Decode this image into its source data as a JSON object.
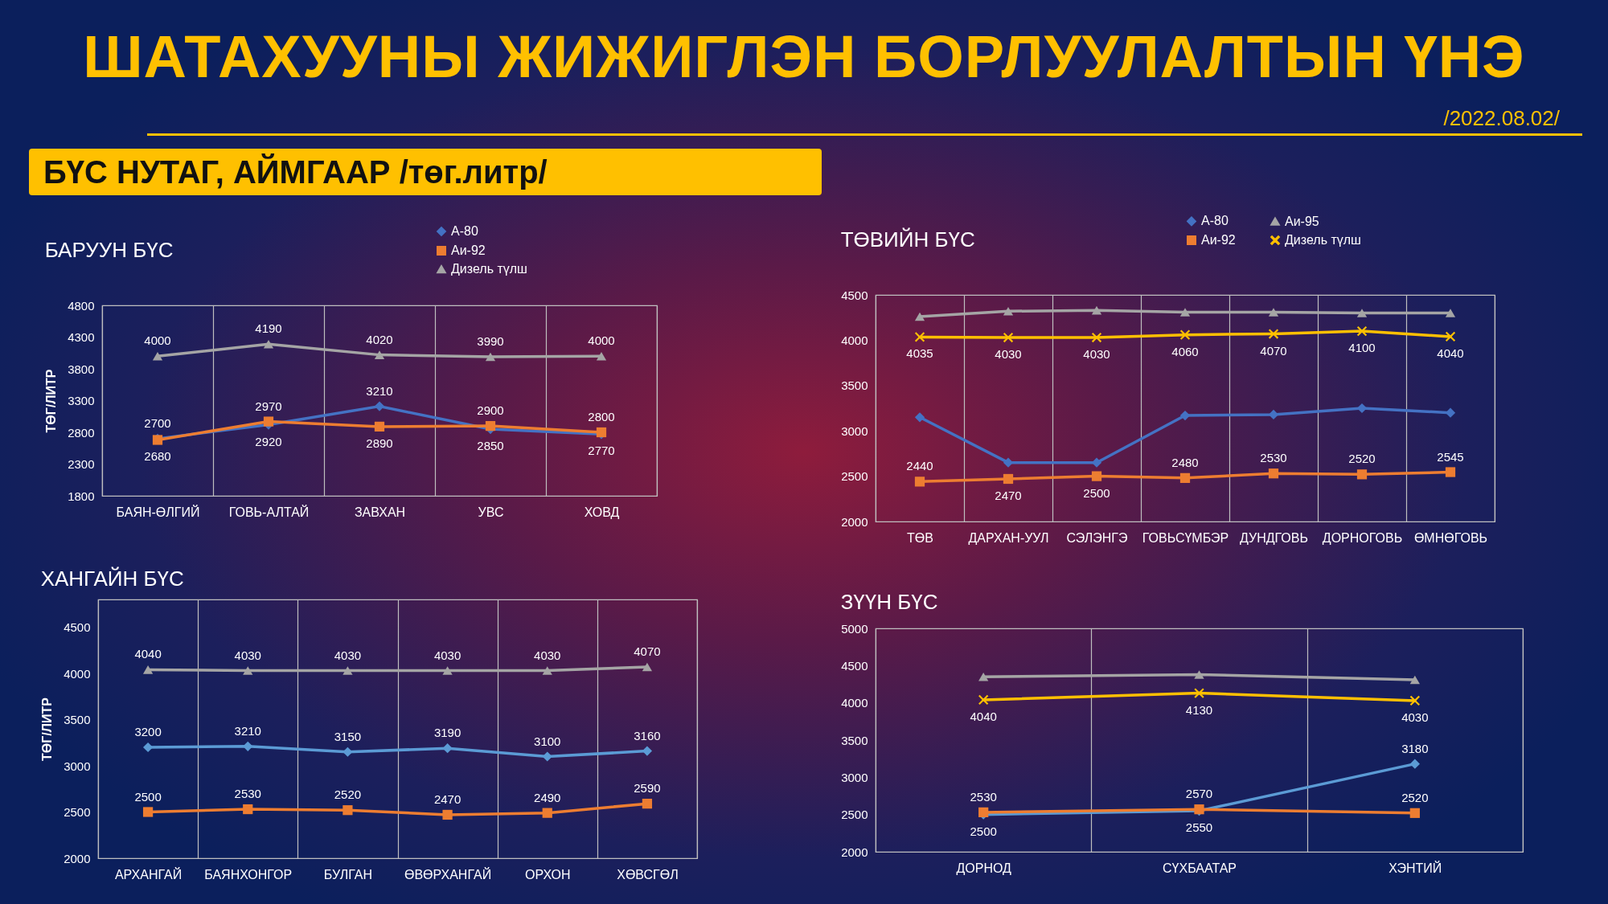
{
  "chart_data": [
    {
      "type": "other",
      "title": "ШАТАХУУНЫ ЖИЖИГЛЭН БОРЛУУЛАЛТЫН ҮНЭ",
      "subtitle": "/2022.08.02/",
      "annotations": [
        "БҮС НУТАГ, АЙМГААР /төг.литр/"
      ]
    },
    {
      "type": "line",
      "title": "БАРУУН БҮС",
      "ylabel": "ТӨГ/ЛИТР",
      "categories": [
        "БАЯН-ӨЛГИЙ",
        "ГОВЬ-АЛТАЙ",
        "ЗАВХАН",
        "УВС",
        "ХОВД"
      ],
      "ylim": [
        1800,
        4800
      ],
      "yticks": [
        1800,
        2300,
        2800,
        3300,
        3800,
        4300,
        4800
      ],
      "grid": "x",
      "legend": "top right",
      "line_style": "solid",
      "data_labels": true,
      "series": [
        {
          "name": "А-80",
          "color": "#4472c4",
          "marker": "diamond",
          "values": [
            2700,
            2920,
            3210,
            2850,
            2770
          ]
        },
        {
          "name": "Аи-92",
          "color": "#ed7d31",
          "marker": "square",
          "values": [
            2680,
            2970,
            2890,
            2900,
            2800
          ]
        },
        {
          "name": "Дизель түлш",
          "color": "#a5a5a5",
          "marker": "triangle",
          "values": [
            4000,
            4190,
            4020,
            3990,
            4000
          ]
        }
      ]
    },
    {
      "type": "line",
      "title": "ТӨВИЙН БҮС",
      "categories": [
        "ТӨВ",
        "ДАРХАН-УУЛ",
        "СЭЛЭНГЭ",
        "ГОВЬСҮМБЭР",
        "ДУНДГОВЬ",
        "ДОРНОГОВЬ",
        "ӨМНӨГОВЬ"
      ],
      "ylim": [
        2000,
        4500
      ],
      "yticks": [
        2000,
        2500,
        3000,
        3500,
        4000,
        4500
      ],
      "grid": "x",
      "legend": "top right",
      "line_style": "solid",
      "series": [
        {
          "name": "А-80",
          "color": "#4472c4",
          "marker": "diamond",
          "values": [
            3150,
            2650,
            2650,
            3170,
            3180,
            3250,
            3200
          ]
        },
        {
          "name": "Аи-92",
          "color": "#ed7d31",
          "marker": "square",
          "values": [
            2440,
            2470,
            2500,
            2480,
            2530,
            2520,
            2545
          ],
          "value_labels": [
            "2440",
            "2470",
            "2500",
            "2480",
            "2530",
            "2520",
            "2545"
          ]
        },
        {
          "name": "Аи-95",
          "color": "#a5a5a5",
          "marker": "triangle",
          "values": [
            4260,
            4320,
            4330,
            4310,
            4310,
            4300,
            4300
          ]
        },
        {
          "name": "Дизель түлш",
          "color": "#ffc000",
          "marker": "cross",
          "values": [
            4035,
            4030,
            4030,
            4060,
            4070,
            4100,
            4040
          ],
          "value_labels": [
            "4035",
            "4030",
            "4030",
            "4060",
            "4070",
            "4100",
            "4040"
          ]
        }
      ]
    },
    {
      "type": "line",
      "title": "ХАНГАЙН БҮС",
      "ylabel": "ТӨГ/ЛИТР",
      "categories": [
        "АРХАНГАЙ",
        "БАЯНХОНГОР",
        "БУЛГАН",
        "ӨВӨРХАНГАЙ",
        "ОРХОН",
        "ХӨВСГӨЛ"
      ],
      "ylim": [
        2000,
        4800
      ],
      "yticks": [
        2000,
        2500,
        3000,
        3500,
        4000,
        4500
      ],
      "grid": "x",
      "line_style": "solid",
      "data_labels": true,
      "series": [
        {
          "color": "#a5a5a5",
          "marker": "triangle",
          "values": [
            4040,
            4030,
            4030,
            4030,
            4030,
            4070
          ]
        },
        {
          "color": "#5b9bd5",
          "marker": "diamond",
          "values": [
            3200,
            3210,
            3150,
            3190,
            3100,
            3160
          ]
        },
        {
          "color": "#ed7d31",
          "marker": "square",
          "values": [
            2500,
            2530,
            2520,
            2470,
            2490,
            2590
          ]
        }
      ]
    },
    {
      "type": "line",
      "title": "ЗҮҮН БҮС",
      "categories": [
        "ДОРНОД",
        "СҮХБААТАР",
        "ХЭНТИЙ"
      ],
      "ylim": [
        2000,
        5000
      ],
      "yticks": [
        2000,
        2500,
        3000,
        3500,
        4000,
        4500,
        5000
      ],
      "grid": "x",
      "line_style": "solid",
      "series": [
        {
          "color": "#5b9bd5",
          "marker": "diamond",
          "values": [
            2500,
            2550,
            3180
          ],
          "value_labels": [
            "2500",
            "2550",
            "3180"
          ]
        },
        {
          "color": "#ed7d31",
          "marker": "square",
          "values": [
            2530,
            2570,
            2520
          ],
          "value_labels": [
            "2530",
            "2570",
            "2520"
          ]
        },
        {
          "color": "#a5a5a5",
          "marker": "triangle",
          "values": [
            4350,
            4380,
            4310
          ]
        },
        {
          "color": "#ffc000",
          "marker": "cross",
          "values": [
            4040,
            4130,
            4030
          ],
          "value_labels": [
            "4040",
            "4130",
            "4030"
          ]
        }
      ]
    }
  ]
}
